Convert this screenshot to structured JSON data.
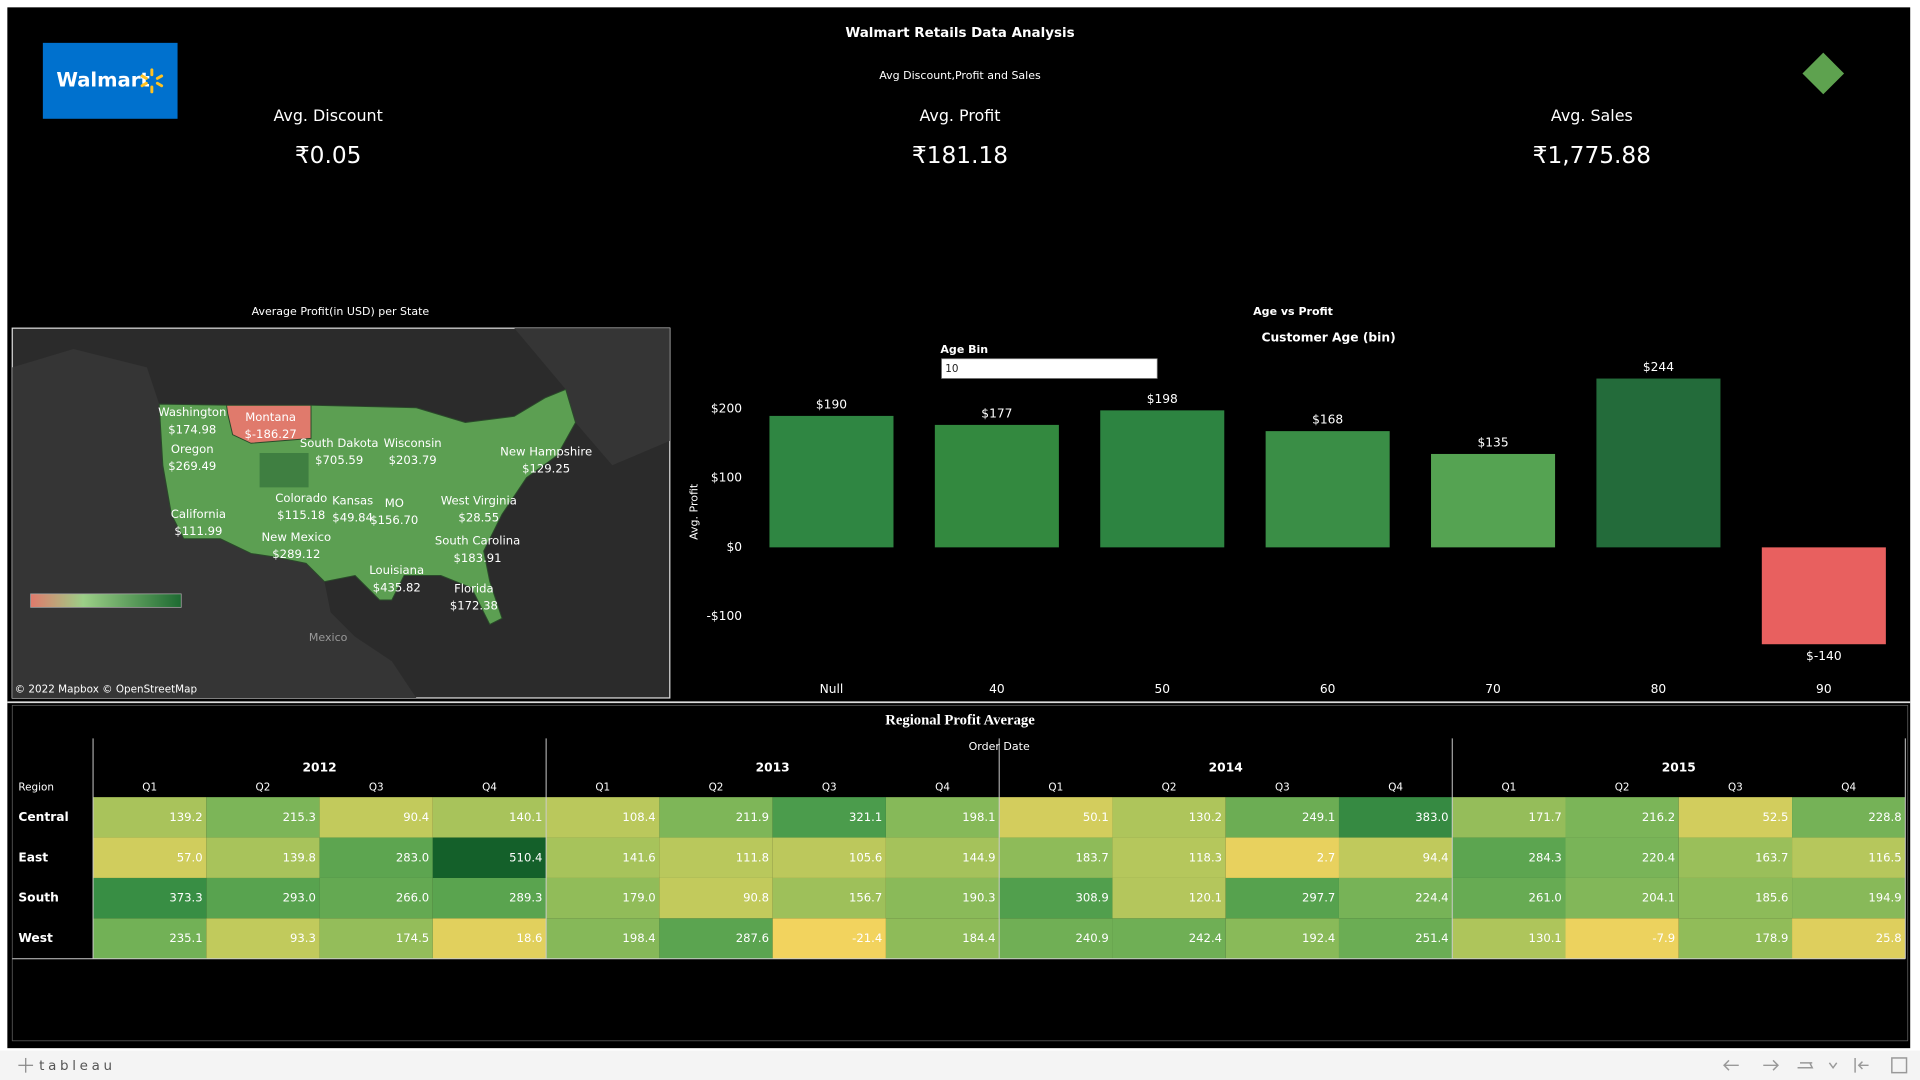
{
  "header": {
    "logo": "Walmart",
    "title": "Walmart Retails Data Analysis",
    "subtitle": "Avg Discount,Profit and Sales"
  },
  "kpis": [
    {
      "label": "Avg. Discount",
      "value": "₹0.05"
    },
    {
      "label": "Avg. Profit",
      "value": "₹181.18"
    },
    {
      "label": "Avg. Sales",
      "value": "₹1,775.88"
    }
  ],
  "map": {
    "title": "Average Profit(in USD) per State",
    "states": [
      {
        "name": "Washington",
        "label": "$174.98"
      },
      {
        "name": "Montana",
        "label": "$-186.27"
      },
      {
        "name": "Oregon",
        "label": "$269.49"
      },
      {
        "name": "South Dakota",
        "label": "$705.59"
      },
      {
        "name": "Wisconsin",
        "label": "$203.79"
      },
      {
        "name": "New Hampshire",
        "label": "$129.25"
      },
      {
        "name": "California",
        "label": "$111.99"
      },
      {
        "name": "Colorado",
        "label": "$115.18"
      },
      {
        "name": "Kansas",
        "label": "$49.84"
      },
      {
        "name": "MO",
        "label": "$156.70"
      },
      {
        "name": "West Virginia",
        "label": "$28.55"
      },
      {
        "name": "New Mexico",
        "label": "$289.12"
      },
      {
        "name": "South Carolina",
        "label": "$183.91"
      },
      {
        "name": "Louisiana",
        "label": "$435.82"
      },
      {
        "name": "Florida",
        "label": "$172.38"
      }
    ],
    "country_label": "Mexico",
    "attribution": "© 2022 Mapbox © OpenStreetMap"
  },
  "parameter": {
    "label": "Age Bin",
    "value": "10"
  },
  "chart_data": {
    "type": "bar",
    "title": "Age vs Profit",
    "x_label": "Customer Age (bin)",
    "y_label": "Avg. Profit",
    "categories": [
      "Null",
      "40",
      "50",
      "60",
      "70",
      "80",
      "90"
    ],
    "values": [
      190,
      177,
      198,
      168,
      135,
      244,
      -140
    ],
    "value_labels": [
      "$190",
      "$177",
      "$198",
      "$168",
      "$135",
      "$244",
      "$-140"
    ],
    "colors": [
      "#2f8642",
      "#33893f",
      "#2d8441",
      "#3a8e46",
      "#55a352",
      "#236b3a",
      "#e8605f"
    ],
    "ylim": [
      -175,
      280
    ],
    "yticks": [
      {
        "value": 200,
        "label": "$200"
      },
      {
        "value": 100,
        "label": "$100"
      },
      {
        "value": 0,
        "label": "$0"
      },
      {
        "value": -100,
        "label": "-$100"
      }
    ],
    "grid": false
  },
  "heatmap": {
    "title": "Regional Profit Average",
    "column_header": "Order Date",
    "row_header": "Region",
    "years": [
      "2012",
      "2013",
      "2014",
      "2015"
    ],
    "quarters": [
      "Q1",
      "Q2",
      "Q3",
      "Q4"
    ],
    "rows": [
      {
        "region": "Central",
        "values": [
          "139.2",
          "215.3",
          "90.4",
          "140.1",
          "108.4",
          "211.9",
          "321.1",
          "198.1",
          "50.1",
          "130.2",
          "249.1",
          "383.0",
          "171.7",
          "216.2",
          "52.5",
          "228.8"
        ]
      },
      {
        "region": "East",
        "values": [
          "57.0",
          "139.8",
          "283.0",
          "510.4",
          "141.6",
          "111.8",
          "105.6",
          "144.9",
          "183.7",
          "118.3",
          "2.7",
          "94.4",
          "284.3",
          "220.4",
          "163.7",
          "116.5"
        ]
      },
      {
        "region": "South",
        "values": [
          "373.3",
          "293.0",
          "266.0",
          "289.3",
          "179.0",
          "90.8",
          "156.7",
          "190.3",
          "308.9",
          "120.1",
          "297.7",
          "224.4",
          "261.0",
          "204.1",
          "185.6",
          "194.9"
        ]
      },
      {
        "region": "West",
        "values": [
          "235.1",
          "93.3",
          "174.5",
          "18.6",
          "198.4",
          "287.6",
          "-21.4",
          "184.4",
          "240.9",
          "242.4",
          "192.4",
          "251.4",
          "130.1",
          "-7.9",
          "178.9",
          "25.8"
        ]
      }
    ]
  },
  "footer": {
    "brand": "tableau"
  }
}
